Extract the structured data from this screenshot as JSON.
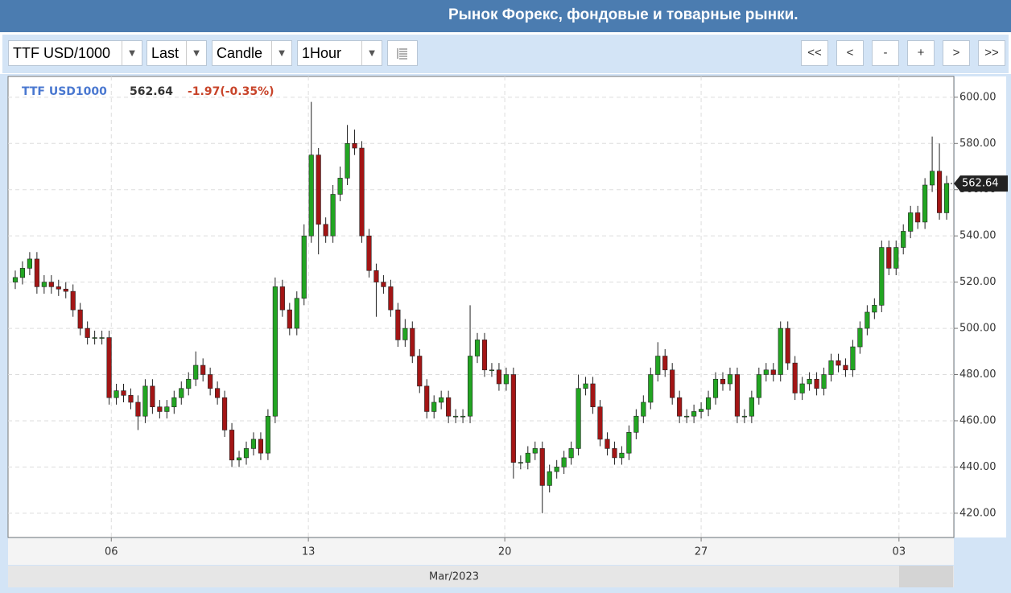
{
  "header": {
    "title": "Рынок Форекс, фондовые и товарные рынки."
  },
  "toolbar": {
    "symbol": "TTF USD/1000",
    "price_field": "Last",
    "chart_style": "Candle",
    "interval": "1Hour",
    "nav_buttons": [
      "<<",
      "<",
      "-",
      "+",
      ">",
      ">>"
    ]
  },
  "chart_data": {
    "type": "candlestick",
    "legend": {
      "symbol": "TTF USD1000",
      "last": "562.64",
      "change": "-1.97(-0.35%)"
    },
    "last_tag": "562.64",
    "x_axis_label": "Mar/2023",
    "up_color": "#22a522",
    "down_color": "#a31515",
    "grid": true,
    "xlim": [
      -1,
      130
    ],
    "xticks": [
      {
        "value": 13.3,
        "label": "06"
      },
      {
        "value": 40.6,
        "label": "13"
      },
      {
        "value": 67.8,
        "label": "20"
      },
      {
        "value": 95,
        "label": "27"
      },
      {
        "value": 122.4,
        "label": "03"
      }
    ],
    "ylim": [
      409.5,
      609
    ],
    "yticks": [
      {
        "value": 420,
        "label": "420.00"
      },
      {
        "value": 440,
        "label": "440.00"
      },
      {
        "value": 460,
        "label": "460.00"
      },
      {
        "value": 480,
        "label": "480.00"
      },
      {
        "value": 500,
        "label": "500.00"
      },
      {
        "value": 520,
        "label": "520.00"
      },
      {
        "value": 540,
        "label": "540.00"
      },
      {
        "value": 560,
        "label": "560.00"
      },
      {
        "value": 580,
        "label": "580.00"
      },
      {
        "value": 600,
        "label": "600.00"
      }
    ],
    "open": [
      520,
      522,
      526,
      530,
      518,
      520,
      518,
      517,
      516,
      508,
      500,
      496,
      496,
      496,
      470,
      473,
      471,
      468,
      462,
      475,
      466,
      464,
      466,
      470,
      474,
      478,
      484,
      480,
      474,
      470,
      456,
      443,
      444,
      448,
      452,
      446,
      462,
      518,
      508,
      500,
      513,
      540,
      575,
      545,
      540,
      558,
      565,
      580,
      578,
      540,
      525,
      520,
      518,
      508,
      495,
      500,
      488,
      475,
      464,
      468,
      470,
      462,
      462,
      462,
      488,
      495,
      482,
      482,
      476,
      480,
      442,
      442,
      446,
      448,
      432,
      438,
      440,
      444,
      448,
      474,
      476,
      466,
      452,
      448,
      444,
      446,
      455,
      462,
      468,
      480,
      488,
      482,
      470,
      462,
      462,
      464,
      465,
      470,
      478,
      476,
      480,
      462,
      462,
      470,
      480,
      482,
      480,
      500,
      485,
      472,
      476,
      478,
      474,
      480,
      486,
      484,
      482,
      492,
      500,
      507,
      510,
      535,
      526,
      535,
      542,
      550,
      546,
      562,
      568,
      550
    ],
    "high": [
      525,
      529,
      533,
      533,
      523,
      523,
      521,
      520,
      519,
      511,
      503,
      499,
      499,
      499,
      476,
      476,
      474,
      471,
      478,
      478,
      469,
      469,
      473,
      477,
      481,
      490,
      487,
      483,
      477,
      473,
      459,
      447,
      451,
      455,
      455,
      465,
      522,
      521,
      511,
      516,
      545,
      598,
      578,
      548,
      562,
      570,
      588,
      586,
      581,
      543,
      528,
      523,
      521,
      511,
      504,
      503,
      491,
      478,
      471,
      473,
      473,
      465,
      465,
      510,
      498,
      498,
      485,
      485,
      483,
      483,
      445,
      449,
      451,
      451,
      441,
      443,
      447,
      451,
      480,
      479,
      479,
      469,
      455,
      451,
      449,
      458,
      465,
      471,
      483,
      494,
      491,
      485,
      473,
      465,
      467,
      468,
      473,
      481,
      481,
      483,
      483,
      465,
      473,
      483,
      485,
      485,
      503,
      503,
      488,
      479,
      481,
      481,
      483,
      489,
      489,
      487,
      495,
      503,
      510,
      513,
      538,
      538,
      538,
      545,
      553,
      553,
      565,
      583,
      580,
      566
    ],
    "low": [
      517,
      519,
      523,
      515,
      515,
      515,
      514,
      513,
      505,
      497,
      493,
      493,
      493,
      467,
      467,
      468,
      465,
      456,
      459,
      463,
      461,
      461,
      463,
      467,
      471,
      475,
      477,
      471,
      467,
      453,
      440,
      440,
      441,
      445,
      443,
      443,
      459,
      505,
      497,
      497,
      510,
      537,
      532,
      537,
      537,
      555,
      562,
      575,
      537,
      522,
      505,
      515,
      505,
      492,
      492,
      485,
      472,
      461,
      461,
      465,
      459,
      459,
      459,
      459,
      485,
      479,
      479,
      473,
      473,
      435,
      439,
      439,
      443,
      420,
      429,
      435,
      437,
      441,
      445,
      471,
      463,
      449,
      445,
      441,
      441,
      443,
      452,
      459,
      465,
      477,
      479,
      467,
      459,
      459,
      459,
      461,
      462,
      467,
      473,
      473,
      459,
      459,
      459,
      467,
      477,
      477,
      477,
      482,
      469,
      469,
      473,
      471,
      471,
      477,
      481,
      479,
      479,
      489,
      497,
      504,
      507,
      523,
      523,
      532,
      539,
      543,
      543,
      559,
      547,
      547
    ],
    "close": [
      522,
      526,
      530,
      518,
      520,
      518,
      517,
      516,
      508,
      500,
      496,
      496,
      496,
      470,
      473,
      471,
      468,
      462,
      475,
      466,
      464,
      466,
      470,
      474,
      478,
      484,
      480,
      474,
      470,
      456,
      443,
      444,
      448,
      452,
      446,
      462,
      518,
      508,
      500,
      513,
      540,
      575,
      545,
      540,
      558,
      565,
      580,
      578,
      540,
      525,
      520,
      518,
      508,
      495,
      500,
      488,
      475,
      464,
      468,
      470,
      462,
      462,
      462,
      488,
      495,
      482,
      482,
      476,
      480,
      442,
      442,
      446,
      448,
      432,
      438,
      440,
      444,
      448,
      474,
      476,
      466,
      452,
      448,
      444,
      446,
      455,
      462,
      468,
      480,
      488,
      482,
      470,
      462,
      462,
      464,
      465,
      470,
      478,
      476,
      480,
      462,
      462,
      470,
      480,
      482,
      480,
      500,
      485,
      472,
      476,
      478,
      474,
      480,
      486,
      484,
      482,
      492,
      500,
      507,
      510,
      535,
      526,
      535,
      542,
      550,
      546,
      562,
      568,
      550,
      562.64
    ]
  }
}
